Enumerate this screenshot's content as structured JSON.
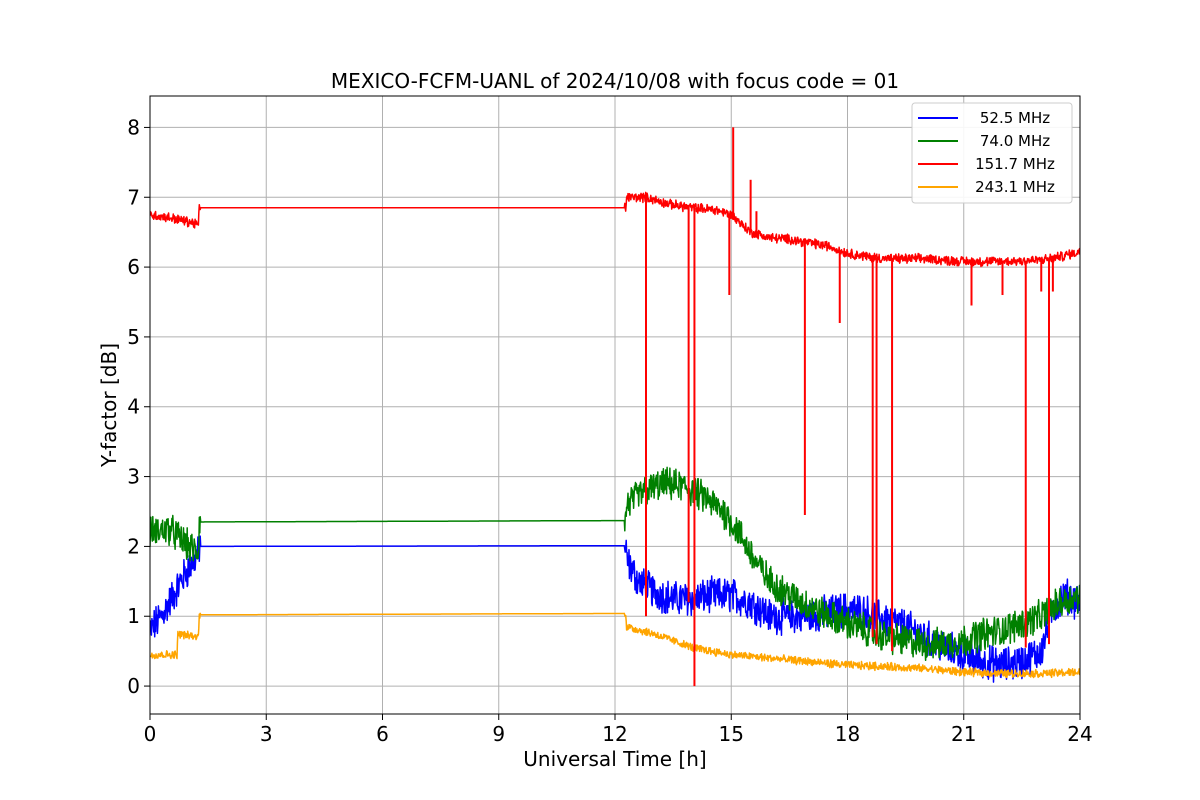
{
  "chart_data": {
    "type": "line",
    "title": "MEXICO-FCFM-UANL of 2024/10/08 with focus code = 01",
    "xlabel": "Universal Time [h]",
    "ylabel": "Y-factor [dB]",
    "xlim": [
      0,
      24
    ],
    "ylim": [
      -0.4,
      8.45
    ],
    "xticks": [
      0,
      3,
      6,
      9,
      12,
      15,
      18,
      21,
      24
    ],
    "yticks": [
      0,
      1,
      2,
      3,
      4,
      5,
      6,
      7,
      8
    ],
    "xtick_labels": [
      "0",
      "3",
      "6",
      "9",
      "12",
      "15",
      "18",
      "21",
      "24"
    ],
    "ytick_labels": [
      "0",
      "1",
      "2",
      "3",
      "4",
      "5",
      "6",
      "7",
      "8"
    ],
    "grid": true,
    "legend_position": "top-right",
    "series": [
      {
        "name": "52.5 MHz",
        "color": "#0000ff",
        "noise": 0.22,
        "x": [
          0,
          0.3,
          0.6,
          0.9,
          1.25,
          1.27,
          12.28,
          12.3,
          12.6,
          13,
          13.5,
          14,
          14.5,
          15,
          15.5,
          16,
          16.5,
          17,
          17.5,
          18,
          18.5,
          19,
          19.5,
          20,
          20.5,
          21,
          21.5,
          22,
          22.5,
          23,
          23.3,
          23.6,
          24
        ],
        "values": [
          0.8,
          1.0,
          1.3,
          1.6,
          1.9,
          2.0,
          2.01,
          1.8,
          1.5,
          1.35,
          1.25,
          1.25,
          1.3,
          1.3,
          1.2,
          1.0,
          1.0,
          1.0,
          1.05,
          1.1,
          1.05,
          0.95,
          0.85,
          0.7,
          0.55,
          0.45,
          0.35,
          0.3,
          0.35,
          0.5,
          1.1,
          1.3,
          1.2
        ]
      },
      {
        "name": "74.0 MHz",
        "color": "#008000",
        "noise": 0.2,
        "x": [
          0,
          0.5,
          1.0,
          1.25,
          1.27,
          12.28,
          12.3,
          12.8,
          13.3,
          13.8,
          14.3,
          14.8,
          15.2,
          15.6,
          16,
          16.5,
          17,
          17.5,
          18,
          18.5,
          19,
          19.5,
          20,
          20.5,
          21,
          21.5,
          22,
          22.5,
          23,
          23.5,
          24
        ],
        "values": [
          2.2,
          2.25,
          2.0,
          1.9,
          2.35,
          2.37,
          2.6,
          2.8,
          2.9,
          2.85,
          2.7,
          2.5,
          2.2,
          1.8,
          1.5,
          1.3,
          1.15,
          1.0,
          0.9,
          0.8,
          0.7,
          0.65,
          0.6,
          0.6,
          0.65,
          0.75,
          0.8,
          0.9,
          1.0,
          1.2,
          1.3
        ]
      },
      {
        "name": "151.7 MHz",
        "color": "#ff0000",
        "noise": 0.06,
        "x": [
          0,
          0.6,
          1.2,
          1.25,
          1.27,
          12.28,
          12.3,
          12.8,
          13.4,
          14,
          14.6,
          15.0,
          15.5,
          16,
          16.5,
          17,
          17.5,
          18,
          18.5,
          19,
          20,
          21,
          22,
          23,
          23.5,
          24
        ],
        "values": [
          6.75,
          6.7,
          6.62,
          6.6,
          6.85,
          6.85,
          7.0,
          7.0,
          6.9,
          6.85,
          6.82,
          6.75,
          6.5,
          6.42,
          6.4,
          6.35,
          6.3,
          6.2,
          6.15,
          6.12,
          6.12,
          6.08,
          6.08,
          6.1,
          6.15,
          6.22
        ]
      },
      {
        "name": "243.1 MHz",
        "color": "#ffa500",
        "noise": 0.05,
        "x": [
          0,
          0.7,
          0.72,
          1.25,
          1.27,
          12.28,
          12.3,
          12.5,
          13,
          13.5,
          14,
          14.5,
          15,
          16,
          17,
          18,
          19,
          20,
          21,
          22,
          23,
          24
        ],
        "values": [
          0.45,
          0.45,
          0.75,
          0.7,
          1.02,
          1.04,
          0.85,
          0.82,
          0.75,
          0.65,
          0.55,
          0.5,
          0.45,
          0.4,
          0.35,
          0.3,
          0.28,
          0.25,
          0.2,
          0.18,
          0.18,
          0.2
        ]
      }
    ],
    "spikes": [
      {
        "series": 2,
        "x": 12.8,
        "y": 1.0
      },
      {
        "series": 2,
        "x": 13.9,
        "y": 1.2
      },
      {
        "series": 2,
        "x": 14.05,
        "y": 0.0
      },
      {
        "series": 2,
        "x": 14.95,
        "y": 5.6
      },
      {
        "series": 2,
        "x": 15.05,
        "y": 8.0
      },
      {
        "series": 2,
        "x": 15.5,
        "y": 7.25
      },
      {
        "series": 2,
        "x": 15.65,
        "y": 6.8
      },
      {
        "series": 2,
        "x": 16.9,
        "y": 2.45
      },
      {
        "series": 2,
        "x": 17.8,
        "y": 5.2
      },
      {
        "series": 2,
        "x": 18.65,
        "y": 0.7
      },
      {
        "series": 2,
        "x": 18.75,
        "y": 0.6
      },
      {
        "series": 2,
        "x": 19.15,
        "y": 0.5
      },
      {
        "series": 2,
        "x": 21.2,
        "y": 5.45
      },
      {
        "series": 2,
        "x": 22.0,
        "y": 5.6
      },
      {
        "series": 2,
        "x": 22.6,
        "y": 0.55
      },
      {
        "series": 2,
        "x": 23.0,
        "y": 5.65
      },
      {
        "series": 2,
        "x": 23.2,
        "y": 0.6
      },
      {
        "series": 2,
        "x": 23.3,
        "y": 5.65
      }
    ]
  }
}
